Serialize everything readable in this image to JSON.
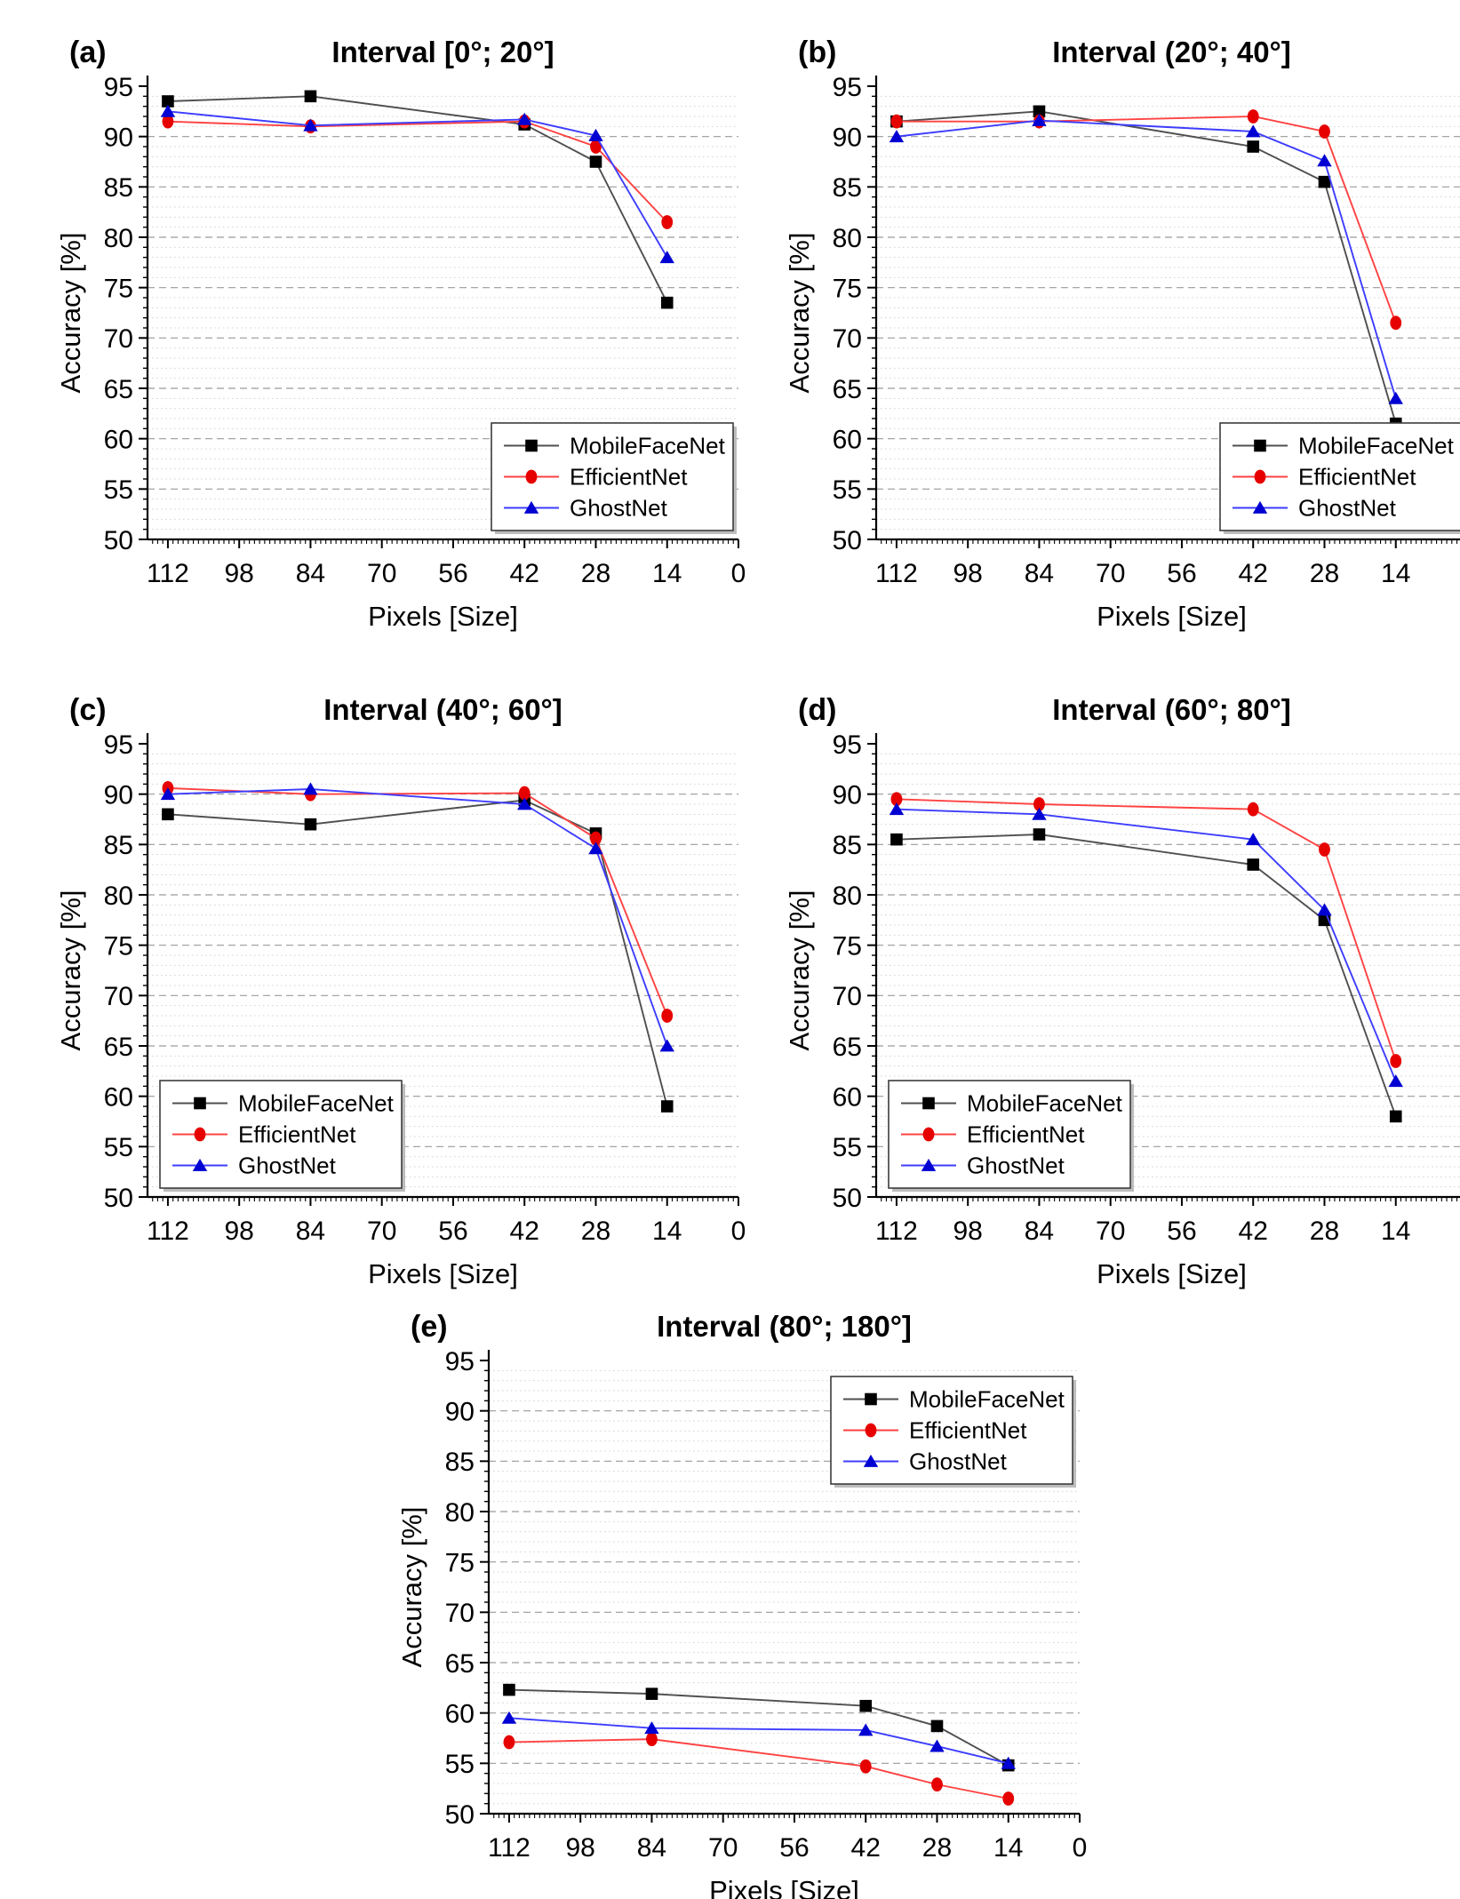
{
  "axes": {
    "x_label": "Pixels [Size]",
    "y_label": "Accuracy [%]",
    "x_major_ticks": [
      112,
      98,
      84,
      70,
      56,
      42,
      28,
      14,
      0
    ],
    "x_domain": [
      116,
      0
    ],
    "x_reversed": true,
    "y_major_ticks": [
      50,
      55,
      60,
      65,
      70,
      75,
      80,
      85,
      90,
      95
    ],
    "y_domain": [
      50,
      95
    ],
    "major_grid": "dashed",
    "minor_grid": "dotted",
    "minor_step": 1
  },
  "styles": {
    "series": [
      {
        "name": "MobileFaceNet",
        "marker": "square",
        "marker_color": "#000000",
        "line_color": "#4f4f4f"
      },
      {
        "name": "EfficientNet",
        "marker": "circle",
        "marker_color": "#e60000",
        "line_color": "#ff4242"
      },
      {
        "name": "GhostNet",
        "marker": "triangle",
        "marker_color": "#0000d2",
        "line_color": "#3d3dff"
      }
    ],
    "major_grid_color": "#9a9a9a",
    "minor_grid_color": "#d4d4d4",
    "axis_color": "#000000",
    "legend_border_color": "#3c3c3c",
    "legend_shadow_color": "#bdbdbd",
    "background": "#ffffff"
  },
  "chart_data": [
    {
      "id": "a",
      "type": "line",
      "panel_label": "(a)",
      "title": "Interval [0°; 20°]",
      "xlabel": "Pixels [Size]",
      "ylabel": "Accuracy [%]",
      "xlim": [
        116,
        0
      ],
      "ylim": [
        50,
        95
      ],
      "grid": true,
      "legend_position": "bottom-right",
      "x": [
        112,
        84,
        42,
        28,
        14
      ],
      "series": [
        {
          "name": "MobileFaceNet",
          "values": [
            93.5,
            94.0,
            91.2,
            87.5,
            73.5
          ]
        },
        {
          "name": "EfficientNet",
          "values": [
            91.5,
            91.0,
            91.5,
            89.0,
            81.5
          ]
        },
        {
          "name": "GhostNet",
          "values": [
            92.5,
            91.1,
            91.7,
            90.1,
            78.0
          ]
        }
      ]
    },
    {
      "id": "b",
      "type": "line",
      "panel_label": "(b)",
      "title": "Interval (20°; 40°]",
      "xlabel": "Pixels [Size]",
      "ylabel": "Accuracy [%]",
      "xlim": [
        116,
        0
      ],
      "ylim": [
        50,
        95
      ],
      "grid": true,
      "legend_position": "bottom-right",
      "x": [
        112,
        84,
        42,
        28,
        14
      ],
      "series": [
        {
          "name": "MobileFaceNet",
          "values": [
            91.5,
            92.5,
            89.0,
            85.5,
            61.5
          ]
        },
        {
          "name": "EfficientNet",
          "values": [
            91.5,
            91.5,
            92.0,
            90.5,
            71.5
          ]
        },
        {
          "name": "GhostNet",
          "values": [
            90.0,
            91.6,
            90.5,
            87.6,
            64.0
          ]
        }
      ]
    },
    {
      "id": "c",
      "type": "line",
      "panel_label": "(c)",
      "title": "Interval (40°; 60°]",
      "xlabel": "Pixels [Size]",
      "ylabel": "Accuracy [%]",
      "xlim": [
        116,
        0
      ],
      "ylim": [
        50,
        95
      ],
      "grid": true,
      "legend_position": "bottom-left",
      "x": [
        112,
        84,
        42,
        28,
        14
      ],
      "series": [
        {
          "name": "MobileFaceNet",
          "values": [
            88.0,
            87.0,
            89.4,
            86.1,
            59.0
          ]
        },
        {
          "name": "EfficientNet",
          "values": [
            90.6,
            90.0,
            90.1,
            85.6,
            68.0
          ]
        },
        {
          "name": "GhostNet",
          "values": [
            90.0,
            90.5,
            89.0,
            84.6,
            65.0
          ]
        }
      ]
    },
    {
      "id": "d",
      "type": "line",
      "panel_label": "(d)",
      "title": "Interval (60°; 80°]",
      "xlabel": "Pixels [Size]",
      "ylabel": "Accuracy [%]",
      "xlim": [
        116,
        0
      ],
      "ylim": [
        50,
        95
      ],
      "grid": true,
      "legend_position": "bottom-left",
      "x": [
        112,
        84,
        42,
        28,
        14
      ],
      "series": [
        {
          "name": "MobileFaceNet",
          "values": [
            85.5,
            86.0,
            83.0,
            77.5,
            58.0
          ]
        },
        {
          "name": "EfficientNet",
          "values": [
            89.5,
            89.0,
            88.5,
            84.5,
            63.5
          ]
        },
        {
          "name": "GhostNet",
          "values": [
            88.5,
            88.0,
            85.5,
            78.5,
            61.5
          ]
        }
      ]
    },
    {
      "id": "e",
      "type": "line",
      "panel_label": "(e)",
      "title": "Interval (80°; 180°]",
      "xlabel": "Pixels [Size]",
      "ylabel": "Accuracy [%]",
      "xlim": [
        116,
        0
      ],
      "ylim": [
        50,
        95
      ],
      "grid": true,
      "legend_position": "top-right",
      "x": [
        112,
        84,
        42,
        28,
        14
      ],
      "series": [
        {
          "name": "MobileFaceNet",
          "values": [
            62.3,
            61.9,
            60.7,
            58.7,
            54.8
          ]
        },
        {
          "name": "EfficientNet",
          "values": [
            57.1,
            57.4,
            54.7,
            52.9,
            51.5
          ]
        },
        {
          "name": "GhostNet",
          "values": [
            59.5,
            58.5,
            58.3,
            56.7,
            55.0
          ]
        }
      ]
    }
  ]
}
